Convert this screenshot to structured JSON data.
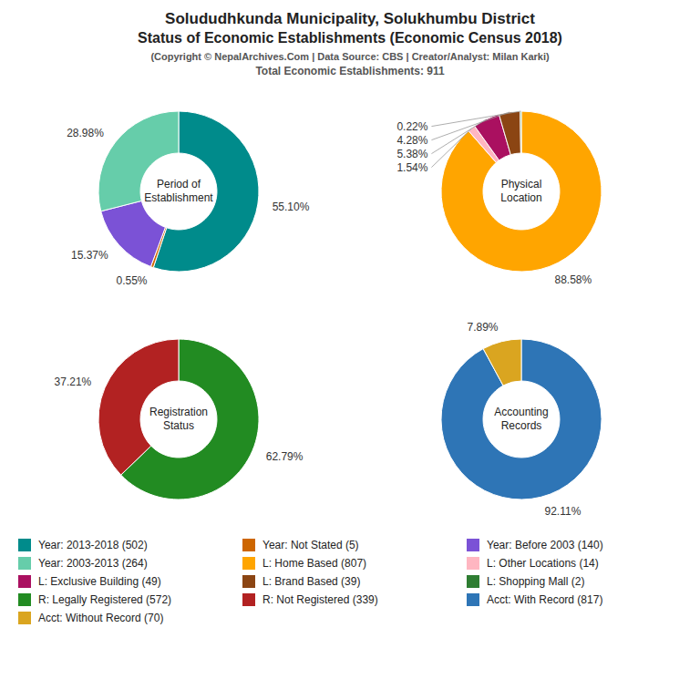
{
  "title": "Solududhkunda Municipality, Solukhumbu District\nStatus of Economic Establishments (Economic Census 2018)",
  "subtitle": "(Copyright © NepalArchives.Com | Data Source: CBS | Creator/Analyst: Milan Karki)",
  "annotations": [
    "Total Economic Establishments: 911"
  ],
  "chart_data": [
    {
      "type": "pie",
      "title": "Period of\nEstablishment",
      "categories": [
        "Year: 2013-2018 (502)",
        "Year: Not Stated (5)",
        "Year: Before 2003 (140)",
        "Year: 2003-2013 (264)"
      ],
      "values": [
        55.1,
        0.55,
        15.37,
        28.98
      ],
      "value_labels": [
        "55.10%",
        "0.55%",
        "15.37%",
        "28.98%"
      ],
      "colors": [
        "#008B8B",
        "#CD6600",
        "#7B52D6",
        "#66CDAA"
      ],
      "data_labels": true,
      "legend": "bottom"
    },
    {
      "type": "pie",
      "title": "Physical\nLocation",
      "categories": [
        "L: Home Based (807)",
        "L: Other Locations (14)",
        "L: Exclusive Building (49)",
        "L: Brand Based (39)",
        "L: Shopping Mall (2)"
      ],
      "values": [
        88.58,
        1.54,
        5.38,
        4.28,
        0.22
      ],
      "value_labels": [
        "88.58%",
        "1.54%",
        "5.38%",
        "4.28%",
        "0.22%"
      ],
      "colors": [
        "#FFA500",
        "#FFB6C1",
        "#AA1060",
        "#8B4513",
        "#2E7D32"
      ],
      "data_labels": true,
      "legend": "bottom"
    },
    {
      "type": "pie",
      "title": "Registration\nStatus",
      "categories": [
        "R: Legally Registered (572)",
        "R: Not Registered (339)"
      ],
      "values": [
        62.79,
        37.21
      ],
      "value_labels": [
        "62.79%",
        "37.21%"
      ],
      "colors": [
        "#228B22",
        "#B22222"
      ],
      "data_labels": true,
      "legend": "bottom"
    },
    {
      "type": "pie",
      "title": "Accounting\nRecords",
      "categories": [
        "Acct: With Record (817)",
        "Acct: Without Record (70)"
      ],
      "values": [
        92.11,
        7.89
      ],
      "value_labels": [
        "92.11%",
        "7.89%"
      ],
      "colors": [
        "#2E75B6",
        "#DAA520"
      ],
      "data_labels": true,
      "legend": "bottom"
    }
  ]
}
